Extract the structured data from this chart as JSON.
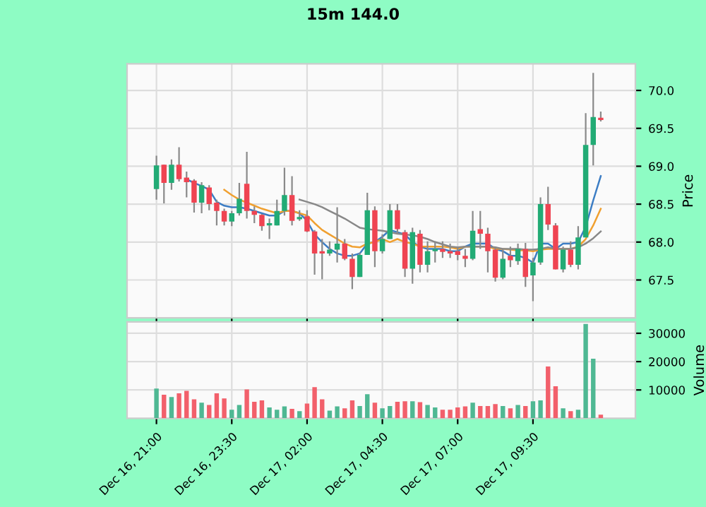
{
  "chart_data": [
    {
      "type": "candlestick",
      "title": "15m 144.0",
      "ylabel": "Price",
      "grid": true,
      "tick_labels": "y",
      "ohlc": [
        [
          68.7,
          69.14,
          68.56,
          69.01
        ],
        [
          69.02,
          69.02,
          68.51,
          68.78
        ],
        [
          68.78,
          69.09,
          68.69,
          69.02
        ],
        [
          69.02,
          69.25,
          68.8,
          68.83
        ],
        [
          68.85,
          68.93,
          68.59,
          68.79
        ],
        [
          68.81,
          68.83,
          68.39,
          68.52
        ],
        [
          68.52,
          68.79,
          68.38,
          68.75
        ],
        [
          68.72,
          68.75,
          68.42,
          68.5
        ],
        [
          68.52,
          68.56,
          68.22,
          68.41
        ],
        [
          68.41,
          68.44,
          68.22,
          68.27
        ],
        [
          68.27,
          68.41,
          68.21,
          68.38
        ],
        [
          68.38,
          68.78,
          68.35,
          68.57
        ],
        [
          68.77,
          69.19,
          68.31,
          68.41
        ],
        [
          68.41,
          68.47,
          68.25,
          68.36
        ],
        [
          68.36,
          68.37,
          68.15,
          68.21
        ],
        [
          68.22,
          68.31,
          68.04,
          68.25
        ],
        [
          68.22,
          68.56,
          68.22,
          68.41
        ],
        [
          68.41,
          68.98,
          68.35,
          68.62
        ],
        [
          68.62,
          68.87,
          68.22,
          68.28
        ],
        [
          68.3,
          68.42,
          68.28,
          68.33
        ],
        [
          68.34,
          68.42,
          68.13,
          68.14
        ],
        [
          68.14,
          68.16,
          67.57,
          67.85
        ],
        [
          67.88,
          68.04,
          67.51,
          67.85
        ],
        [
          67.85,
          68.01,
          67.82,
          67.9
        ],
        [
          67.9,
          68.46,
          67.73,
          67.98
        ],
        [
          67.98,
          68.04,
          67.76,
          67.78
        ],
        [
          67.78,
          67.85,
          67.38,
          67.54
        ],
        [
          67.54,
          67.86,
          67.54,
          67.83
        ],
        [
          67.83,
          68.65,
          67.83,
          68.42
        ],
        [
          68.42,
          68.47,
          67.67,
          67.88
        ],
        [
          67.88,
          68.1,
          67.85,
          68.04
        ],
        [
          68.04,
          68.5,
          68.04,
          68.42
        ],
        [
          68.42,
          68.5,
          68.1,
          68.17
        ],
        [
          68.13,
          68.16,
          67.54,
          67.65
        ],
        [
          67.65,
          68.19,
          67.45,
          68.13
        ],
        [
          68.11,
          68.16,
          67.6,
          67.7
        ],
        [
          67.7,
          68.01,
          67.6,
          67.88
        ],
        [
          67.88,
          68.01,
          67.73,
          67.91
        ],
        [
          67.91,
          68.01,
          67.79,
          67.87
        ],
        [
          67.88,
          67.98,
          67.79,
          67.85
        ],
        [
          67.88,
          67.94,
          67.76,
          67.83
        ],
        [
          67.82,
          67.91,
          67.67,
          67.78
        ],
        [
          67.78,
          68.41,
          67.76,
          68.15
        ],
        [
          68.17,
          68.41,
          67.91,
          68.11
        ],
        [
          68.11,
          68.19,
          67.6,
          67.88
        ],
        [
          67.9,
          67.94,
          67.48,
          67.53
        ],
        [
          67.53,
          67.91,
          67.51,
          67.78
        ],
        [
          67.82,
          67.94,
          67.67,
          67.76
        ],
        [
          67.75,
          67.98,
          67.7,
          67.91
        ],
        [
          67.91,
          67.99,
          67.41,
          67.54
        ],
        [
          67.56,
          67.79,
          67.22,
          67.73
        ],
        [
          67.73,
          68.59,
          67.7,
          68.5
        ],
        [
          68.5,
          68.73,
          68.16,
          68.23
        ],
        [
          68.22,
          68.25,
          67.64,
          67.64
        ],
        [
          67.64,
          67.94,
          67.6,
          67.9
        ],
        [
          67.9,
          68.01,
          67.67,
          67.7
        ],
        [
          67.7,
          68.21,
          67.64,
          68.06
        ],
        [
          68.06,
          69.7,
          68.06,
          69.28
        ],
        [
          69.28,
          70.23,
          69.01,
          69.65
        ],
        [
          69.64,
          69.72,
          69.59,
          69.61
        ]
      ],
      "colors": [
        "#22ab75",
        "#ef4452",
        "#22ab75",
        "#ef4452",
        "#ef4452",
        "#ef4452",
        "#22ab75",
        "#ef4452",
        "#ef4452",
        "#ef4452",
        "#22ab75",
        "#22ab75",
        "#ef4452",
        "#ef4452",
        "#ef4452",
        "#22ab75",
        "#22ab75",
        "#22ab75",
        "#ef4452",
        "#22ab75",
        "#ef4452",
        "#ef4452",
        "#ef4452",
        "#22ab75",
        "#22ab75",
        "#ef4452",
        "#ef4452",
        "#22ab75",
        "#22ab75",
        "#ef4452",
        "#22ab75",
        "#22ab75",
        "#ef4452",
        "#ef4452",
        "#22ab75",
        "#ef4452",
        "#22ab75",
        "#22ab75",
        "#ef4452",
        "#ef4452",
        "#ef4452",
        "#ef4452",
        "#22ab75",
        "#ef4452",
        "#ef4452",
        "#ef4452",
        "#22ab75",
        "#ef4452",
        "#22ab75",
        "#ef4452",
        "#22ab75",
        "#22ab75",
        "#ef4452",
        "#ef4452",
        "#22ab75",
        "#ef4452",
        "#22ab75",
        "#22ab75",
        "#22ab75",
        "#ef4452"
      ],
      "series": [
        {
          "type": "line",
          "color": "#3c7dc4",
          "values": [
            null,
            null,
            null,
            null,
            68.83,
            68.78,
            68.74,
            68.69,
            68.53,
            68.48,
            68.46,
            68.46,
            68.44,
            68.41,
            68.38,
            68.35,
            68.35,
            68.41,
            68.41,
            68.38,
            68.28,
            68.1,
            68.0,
            67.91,
            67.85,
            67.82,
            67.82,
            67.85,
            67.98,
            68.0,
            68.07,
            68.16,
            68.13,
            68.1,
            68.0,
            67.94,
            67.91,
            67.91,
            67.91,
            67.88,
            67.88,
            67.94,
            67.98,
            67.98,
            67.98,
            67.91,
            67.88,
            67.82,
            67.82,
            67.79,
            67.73,
            67.98,
            67.98,
            67.91,
            67.98,
            67.98,
            68.0,
            68.2,
            68.55,
            68.87
          ]
        },
        {
          "type": "line",
          "color": "#f0a030",
          "values": [
            null,
            null,
            null,
            null,
            null,
            null,
            null,
            null,
            null,
            68.69,
            68.62,
            68.56,
            68.52,
            68.48,
            68.44,
            68.41,
            68.38,
            68.41,
            68.41,
            68.38,
            68.35,
            68.25,
            68.16,
            68.1,
            68.04,
            67.98,
            67.94,
            67.93,
            67.98,
            68.0,
            68.04,
            68.0,
            68.04,
            68.0,
            67.98,
            67.94,
            67.94,
            67.94,
            67.94,
            67.93,
            67.91,
            67.94,
            67.94,
            67.94,
            67.94,
            67.91,
            67.91,
            67.9,
            67.89,
            67.89,
            67.88,
            67.9,
            67.91,
            67.91,
            67.91,
            67.91,
            67.94,
            68.04,
            68.22,
            68.44
          ]
        },
        {
          "type": "line",
          "color": "#888888",
          "values": [
            null,
            null,
            null,
            null,
            null,
            null,
            null,
            null,
            null,
            null,
            null,
            null,
            null,
            null,
            null,
            null,
            null,
            null,
            null,
            68.56,
            68.53,
            68.5,
            68.46,
            68.41,
            68.36,
            68.31,
            68.25,
            68.19,
            68.17,
            68.16,
            68.15,
            68.13,
            68.11,
            68.1,
            68.09,
            68.07,
            68.04,
            68.0,
            67.97,
            67.94,
            67.93,
            67.94,
            67.94,
            67.94,
            67.94,
            67.93,
            67.91,
            67.91,
            67.91,
            67.9,
            67.9,
            67.91,
            67.93,
            67.91,
            67.91,
            67.91,
            67.93,
            67.98,
            68.05,
            68.14
          ]
        }
      ],
      "ylim": [
        67.0,
        70.35
      ],
      "yticks": [
        {
          "value": 67.5,
          "label": "67.5"
        },
        {
          "value": 68,
          "label": "68.0"
        },
        {
          "value": 68.5,
          "label": "68.5"
        },
        {
          "value": 69,
          "label": "69.0"
        },
        {
          "value": 69.5,
          "label": "69.5"
        },
        {
          "value": 70,
          "label": "70.0"
        }
      ]
    },
    {
      "type": "bar",
      "ylabel": "Volume",
      "grid": true,
      "categories": [
        "Dec 16, 21:00",
        null,
        null,
        null,
        null,
        null,
        null,
        null,
        null,
        null,
        "Dec 16, 23:30",
        null,
        null,
        null,
        null,
        null,
        null,
        null,
        null,
        null,
        "Dec 17, 02:00",
        null,
        null,
        null,
        null,
        null,
        null,
        null,
        null,
        null,
        "Dec 17, 04:30",
        null,
        null,
        null,
        null,
        null,
        null,
        null,
        null,
        null,
        "Dec 17, 07:00",
        null,
        null,
        null,
        null,
        null,
        null,
        null,
        null,
        null,
        "Dec 17, 09:30",
        null,
        null,
        null,
        null,
        null,
        null,
        null,
        null,
        null
      ],
      "values": [
        10500,
        8300,
        7500,
        8800,
        9700,
        6700,
        5500,
        4700,
        8800,
        7000,
        3000,
        4700,
        10200,
        5800,
        6300,
        3800,
        3000,
        4200,
        3300,
        2500,
        5200,
        11000,
        6700,
        2700,
        4200,
        3500,
        6300,
        4300,
        8500,
        5500,
        3500,
        4300,
        5800,
        6000,
        6000,
        5700,
        4700,
        3800,
        3000,
        3000,
        3800,
        4200,
        5500,
        4300,
        4300,
        5000,
        4300,
        3500,
        4700,
        4300,
        6000,
        6300,
        18300,
        11300,
        3500,
        2500,
        3000,
        33300,
        21000,
        1300
      ],
      "colors": [
        "#4fb893",
        "#f2606b",
        "#4fb893",
        "#f2606b",
        "#f2606b",
        "#f2606b",
        "#4fb893",
        "#f2606b",
        "#f2606b",
        "#f2606b",
        "#4fb893",
        "#4fb893",
        "#f2606b",
        "#f2606b",
        "#f2606b",
        "#4fb893",
        "#4fb893",
        "#4fb893",
        "#f2606b",
        "#4fb893",
        "#f2606b",
        "#f2606b",
        "#f2606b",
        "#4fb893",
        "#4fb893",
        "#f2606b",
        "#f2606b",
        "#4fb893",
        "#4fb893",
        "#f2606b",
        "#4fb893",
        "#4fb893",
        "#f2606b",
        "#f2606b",
        "#4fb893",
        "#f2606b",
        "#4fb893",
        "#4fb893",
        "#f2606b",
        "#f2606b",
        "#f2606b",
        "#f2606b",
        "#4fb893",
        "#f2606b",
        "#f2606b",
        "#f2606b",
        "#4fb893",
        "#f2606b",
        "#4fb893",
        "#f2606b",
        "#4fb893",
        "#4fb893",
        "#f2606b",
        "#f2606b",
        "#4fb893",
        "#f2606b",
        "#4fb893",
        "#4fb893",
        "#4fb893",
        "#f2606b"
      ],
      "ylim": [
        0,
        34000
      ],
      "yticks": [
        10000,
        20000,
        30000
      ]
    }
  ]
}
